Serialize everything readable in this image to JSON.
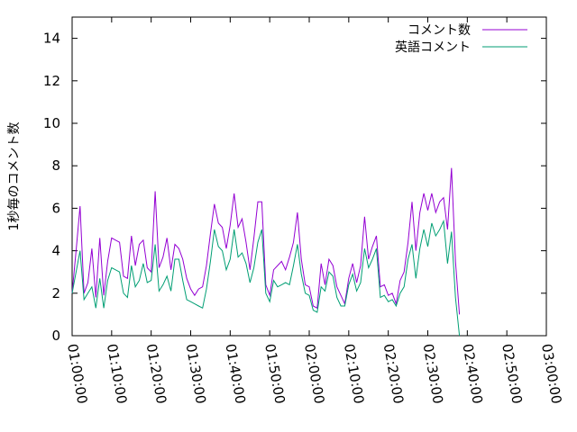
{
  "chart_data": {
    "type": "line",
    "title": "",
    "xlabel": "",
    "ylabel": "1秒毎のコメント数",
    "x_ticks": [
      "01:00:00",
      "01:10:00",
      "01:20:00",
      "01:30:00",
      "01:40:00",
      "01:50:00",
      "02:00:00",
      "02:10:00",
      "02:20:00",
      "02:30:00",
      "02:40:00",
      "02:50:00",
      "03:00:00"
    ],
    "xlim": [
      "01:00:00",
      "03:00:00"
    ],
    "ylim": [
      0,
      15
    ],
    "y_ticks": [
      0,
      2,
      4,
      6,
      8,
      10,
      12,
      14
    ],
    "grid": false,
    "legend_position": "top-right",
    "series": [
      {
        "name": "コメント数",
        "color": "#9400d3",
        "points": [
          [
            "01:00:00",
            2.0
          ],
          [
            "01:01:00",
            4.0
          ],
          [
            "01:02:00",
            6.1
          ],
          [
            "01:03:00",
            2.0
          ],
          [
            "01:04:00",
            2.5
          ],
          [
            "01:05:00",
            4.1
          ],
          [
            "01:06:00",
            1.8
          ],
          [
            "01:07:00",
            4.6
          ],
          [
            "01:08:00",
            1.9
          ],
          [
            "01:09:00",
            3.5
          ],
          [
            "01:10:00",
            4.6
          ],
          [
            "01:12:00",
            4.4
          ],
          [
            "01:13:00",
            2.8
          ],
          [
            "01:14:00",
            2.7
          ],
          [
            "01:15:00",
            4.7
          ],
          [
            "01:16:00",
            3.3
          ],
          [
            "01:17:00",
            4.3
          ],
          [
            "01:18:00",
            4.5
          ],
          [
            "01:19:00",
            3.2
          ],
          [
            "01:20:00",
            3.0
          ],
          [
            "01:21:00",
            6.8
          ],
          [
            "01:22:00",
            3.2
          ],
          [
            "01:23:00",
            3.7
          ],
          [
            "01:24:00",
            4.6
          ],
          [
            "01:25:00",
            3.1
          ],
          [
            "01:26:00",
            4.3
          ],
          [
            "01:27:00",
            4.1
          ],
          [
            "01:28:00",
            3.6
          ],
          [
            "01:29:00",
            2.7
          ],
          [
            "01:30:00",
            2.2
          ],
          [
            "01:31:00",
            1.9
          ],
          [
            "01:32:00",
            2.2
          ],
          [
            "01:33:00",
            2.3
          ],
          [
            "01:34:00",
            3.3
          ],
          [
            "01:35:00",
            4.8
          ],
          [
            "01:36:00",
            6.2
          ],
          [
            "01:37:00",
            5.3
          ],
          [
            "01:38:00",
            5.1
          ],
          [
            "01:39:00",
            4.1
          ],
          [
            "01:40:00",
            5.2
          ],
          [
            "01:41:00",
            6.7
          ],
          [
            "01:42:00",
            5.1
          ],
          [
            "01:43:00",
            5.5
          ],
          [
            "01:44:00",
            4.4
          ],
          [
            "01:45:00",
            3.1
          ],
          [
            "01:46:00",
            4.6
          ],
          [
            "01:47:00",
            6.3
          ],
          [
            "01:48:00",
            6.3
          ],
          [
            "01:49:00",
            2.4
          ],
          [
            "01:50:00",
            1.9
          ],
          [
            "01:51:00",
            3.1
          ],
          [
            "01:52:00",
            3.3
          ],
          [
            "01:53:00",
            3.5
          ],
          [
            "01:54:00",
            3.1
          ],
          [
            "01:55:00",
            3.7
          ],
          [
            "01:56:00",
            4.4
          ],
          [
            "01:57:00",
            5.8
          ],
          [
            "01:58:00",
            3.6
          ],
          [
            "01:59:00",
            2.4
          ],
          [
            "02:00:00",
            2.3
          ],
          [
            "02:01:00",
            1.4
          ],
          [
            "02:02:00",
            1.3
          ],
          [
            "02:03:00",
            3.4
          ],
          [
            "02:04:00",
            2.4
          ],
          [
            "02:05:00",
            3.6
          ],
          [
            "02:06:00",
            3.3
          ],
          [
            "02:07:00",
            2.3
          ],
          [
            "02:08:00",
            1.9
          ],
          [
            "02:09:00",
            1.5
          ],
          [
            "02:10:00",
            2.7
          ],
          [
            "02:11:00",
            3.4
          ],
          [
            "02:12:00",
            2.5
          ],
          [
            "02:13:00",
            3.3
          ],
          [
            "02:14:00",
            5.6
          ],
          [
            "02:15:00",
            3.6
          ],
          [
            "02:16:00",
            4.2
          ],
          [
            "02:17:00",
            4.7
          ],
          [
            "02:18:00",
            2.3
          ],
          [
            "02:19:00",
            2.4
          ],
          [
            "02:20:00",
            1.9
          ],
          [
            "02:21:00",
            2.0
          ],
          [
            "02:22:00",
            1.5
          ],
          [
            "02:23:00",
            2.6
          ],
          [
            "02:24:00",
            3.0
          ],
          [
            "02:25:00",
            4.4
          ],
          [
            "02:26:00",
            6.3
          ],
          [
            "02:27:00",
            4.0
          ],
          [
            "02:28:00",
            5.8
          ],
          [
            "02:29:00",
            6.7
          ],
          [
            "02:30:00",
            5.9
          ],
          [
            "02:31:00",
            6.7
          ],
          [
            "02:32:00",
            5.8
          ],
          [
            "02:33:00",
            6.3
          ],
          [
            "02:34:00",
            6.5
          ],
          [
            "02:35:00",
            5.0
          ],
          [
            "02:36:00",
            7.9
          ],
          [
            "02:37:00",
            3.5
          ],
          [
            "02:38:00",
            1.0
          ]
        ]
      },
      {
        "name": "英語コメント",
        "color": "#009e73",
        "points": [
          [
            "01:00:00",
            2.0
          ],
          [
            "01:01:00",
            3.0
          ],
          [
            "01:02:00",
            4.0
          ],
          [
            "01:03:00",
            1.7
          ],
          [
            "01:04:00",
            2.0
          ],
          [
            "01:05:00",
            2.3
          ],
          [
            "01:06:00",
            1.3
          ],
          [
            "01:07:00",
            2.7
          ],
          [
            "01:08:00",
            1.3
          ],
          [
            "01:09:00",
            2.6
          ],
          [
            "01:10:00",
            3.2
          ],
          [
            "01:12:00",
            3.0
          ],
          [
            "01:13:00",
            2.0
          ],
          [
            "01:14:00",
            1.8
          ],
          [
            "01:15:00",
            3.3
          ],
          [
            "01:16:00",
            2.3
          ],
          [
            "01:17:00",
            2.6
          ],
          [
            "01:18:00",
            3.4
          ],
          [
            "01:19:00",
            2.5
          ],
          [
            "01:20:00",
            2.6
          ],
          [
            "01:21:00",
            4.3
          ],
          [
            "01:22:00",
            2.1
          ],
          [
            "01:23:00",
            2.4
          ],
          [
            "01:24:00",
            2.8
          ],
          [
            "01:25:00",
            2.1
          ],
          [
            "01:26:00",
            3.6
          ],
          [
            "01:27:00",
            3.6
          ],
          [
            "01:28:00",
            2.6
          ],
          [
            "01:29:00",
            1.7
          ],
          [
            "01:30:00",
            1.6
          ],
          [
            "01:31:00",
            1.5
          ],
          [
            "01:32:00",
            1.4
          ],
          [
            "01:33:00",
            1.3
          ],
          [
            "01:34:00",
            2.2
          ],
          [
            "01:35:00",
            3.5
          ],
          [
            "01:36:00",
            5.0
          ],
          [
            "01:37:00",
            4.2
          ],
          [
            "01:38:00",
            4.0
          ],
          [
            "01:39:00",
            3.1
          ],
          [
            "01:40:00",
            3.6
          ],
          [
            "01:41:00",
            5.0
          ],
          [
            "01:42:00",
            3.7
          ],
          [
            "01:43:00",
            3.9
          ],
          [
            "01:44:00",
            3.4
          ],
          [
            "01:45:00",
            2.5
          ],
          [
            "01:46:00",
            3.2
          ],
          [
            "01:47:00",
            4.4
          ],
          [
            "01:48:00",
            5.0
          ],
          [
            "01:49:00",
            2.0
          ],
          [
            "01:50:00",
            1.6
          ],
          [
            "01:51:00",
            2.6
          ],
          [
            "01:52:00",
            2.3
          ],
          [
            "01:53:00",
            2.4
          ],
          [
            "01:54:00",
            2.5
          ],
          [
            "01:55:00",
            2.4
          ],
          [
            "01:56:00",
            3.3
          ],
          [
            "01:57:00",
            4.3
          ],
          [
            "01:58:00",
            2.9
          ],
          [
            "01:59:00",
            2.0
          ],
          [
            "02:00:00",
            1.9
          ],
          [
            "02:01:00",
            1.2
          ],
          [
            "02:02:00",
            1.1
          ],
          [
            "02:03:00",
            2.3
          ],
          [
            "02:04:00",
            2.1
          ],
          [
            "02:05:00",
            3.0
          ],
          [
            "02:06:00",
            2.8
          ],
          [
            "02:07:00",
            1.8
          ],
          [
            "02:08:00",
            1.4
          ],
          [
            "02:09:00",
            1.4
          ],
          [
            "02:10:00",
            2.4
          ],
          [
            "02:11:00",
            2.9
          ],
          [
            "02:12:00",
            2.1
          ],
          [
            "02:13:00",
            2.5
          ],
          [
            "02:14:00",
            4.1
          ],
          [
            "02:15:00",
            3.2
          ],
          [
            "02:16:00",
            3.6
          ],
          [
            "02:17:00",
            4.1
          ],
          [
            "02:18:00",
            1.8
          ],
          [
            "02:19:00",
            1.9
          ],
          [
            "02:20:00",
            1.6
          ],
          [
            "02:21:00",
            1.7
          ],
          [
            "02:22:00",
            1.4
          ],
          [
            "02:23:00",
            2.0
          ],
          [
            "02:24:00",
            2.3
          ],
          [
            "02:25:00",
            3.6
          ],
          [
            "02:26:00",
            4.3
          ],
          [
            "02:27:00",
            2.7
          ],
          [
            "02:28:00",
            4.1
          ],
          [
            "02:29:00",
            5.0
          ],
          [
            "02:30:00",
            4.2
          ],
          [
            "02:31:00",
            5.3
          ],
          [
            "02:32:00",
            4.7
          ],
          [
            "02:33:00",
            5.0
          ],
          [
            "02:34:00",
            5.4
          ],
          [
            "02:35:00",
            3.4
          ],
          [
            "02:36:00",
            4.9
          ],
          [
            "02:37:00",
            1.8
          ],
          [
            "02:38:00",
            0.0
          ]
        ]
      }
    ]
  }
}
